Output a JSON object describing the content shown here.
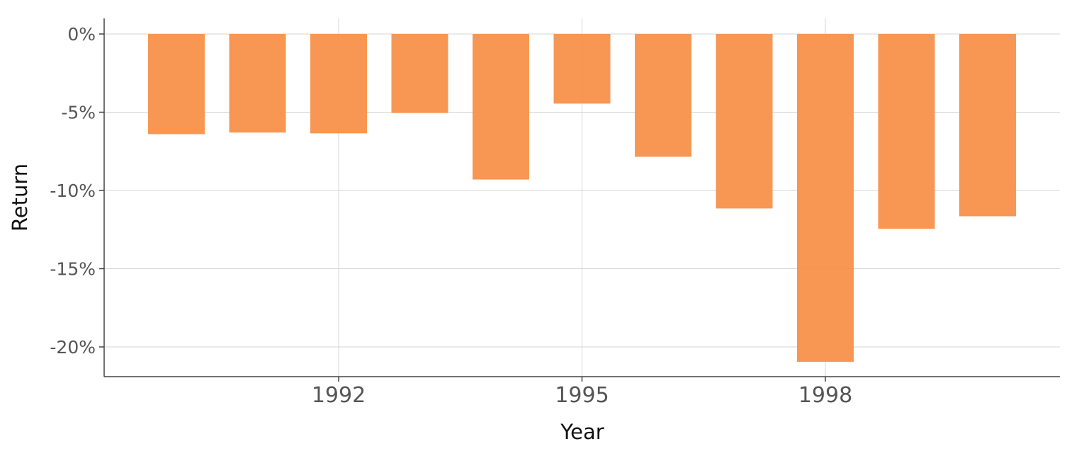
{
  "chart_data": {
    "type": "bar",
    "title": "",
    "xlabel": "Year",
    "ylabel": "Return",
    "x": [
      1990,
      1991,
      1992,
      1993,
      1994,
      1995,
      1996,
      1997,
      1998,
      1999,
      2000
    ],
    "values": [
      -6.4,
      -6.3,
      -6.35,
      -5.05,
      -9.3,
      -4.45,
      -7.85,
      -11.15,
      -20.95,
      -12.45,
      -11.65
    ],
    "ylim": [
      -22,
      1
    ],
    "yticks": [
      0,
      -5,
      -10,
      -15,
      -20
    ],
    "ytick_labels": [
      "0%",
      "-5%",
      "-10%",
      "-15%",
      "-20%"
    ],
    "xticks": [
      1992,
      1995,
      1998
    ],
    "xtick_labels": [
      "1992",
      "1995",
      "1998"
    ],
    "xlim": [
      1988.6,
      2000.5
    ],
    "bar_color": "#f7914a",
    "grid": true,
    "legend": "none"
  }
}
